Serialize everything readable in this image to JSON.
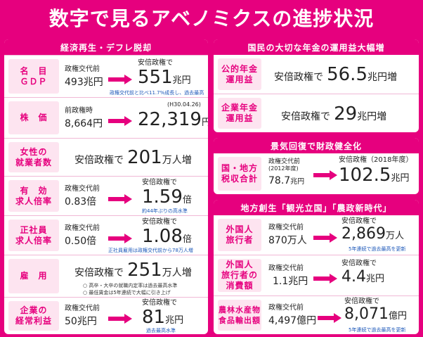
{
  "title": "数字で見るアベノミクスの進捗状況",
  "econ": {
    "header": "経済再生・デフレ脱却",
    "rows": [
      {
        "label": "名　目\nＧＤＰ",
        "before_label": "政権交代前",
        "before_value": "493兆円",
        "after_label": "安倍政権で",
        "after_value": "551",
        "after_unit": "兆円",
        "note": "政権交代前と比べ11.7%成長し、過去最高"
      },
      {
        "label": "株　価",
        "before_label": "前政権時",
        "before_value": "8,664円",
        "after_date": "(H30.04.26)",
        "after_value": "22,319",
        "after_unit": "円"
      },
      {
        "label": "女性の\n就業者数",
        "after_label": "安倍政権で",
        "after_value": "201",
        "after_unit": "万人増"
      },
      {
        "label": "有　効\n求人倍率",
        "before_label": "政権交代前",
        "before_value": "0.83倍",
        "after_label": "安倍政権で",
        "after_value": "1.59",
        "after_unit": "倍",
        "note": "約44年ぶりの高水準"
      },
      {
        "label": "正社員\n求人倍率",
        "before_label": "政権交代前",
        "before_value": "0.50倍",
        "after_label": "安倍政権で",
        "after_value": "1.08",
        "after_unit": "倍",
        "note": "正社員雇用は政権交代前から78万人増"
      },
      {
        "label": "雇　用",
        "after_label": "安倍政権で",
        "after_value": "251",
        "after_unit": "万人増",
        "note_a": "○ 高卒・大卒の就職内定率は過去最高水準",
        "note_b": "○ 最低賃金は5年連続で大幅に引き上げ"
      },
      {
        "label": "企業の\n経常利益",
        "before_label": "政権交代前",
        "before_value": "50兆円",
        "after_label": "安倍政権で",
        "after_value": "81",
        "after_unit": "兆円",
        "note": "過去最高水準"
      }
    ]
  },
  "pension": {
    "header": "国民の大切な年金の運用益大幅増",
    "rows": [
      {
        "label": "公的年金\n運用益",
        "prefix": "安倍政権で",
        "value": "56.5",
        "unit": "兆円増"
      },
      {
        "label": "企業年金\n運用益",
        "prefix": "安倍政権で",
        "value": "29",
        "unit": "兆円増"
      }
    ]
  },
  "fiscal": {
    "header": "景気回復で財政健全化",
    "row": {
      "label": "国・地方\n税収合計",
      "before_label": "政権交代前",
      "before_year": "(2012年度)",
      "before_value": "78.7",
      "before_unit": "兆円",
      "after_label": "安倍政権（2018年度）",
      "after_value": "102.5",
      "after_unit": "兆円"
    }
  },
  "regional": {
    "header": "地方創生「観光立国」「農政新時代」",
    "rows": [
      {
        "label": "外国人\n旅行者",
        "before_label": "政権交代前",
        "before_value": "870万人",
        "after_label": "安倍政権で",
        "after_value": "2,869",
        "after_unit": "万人",
        "note": "5年連続で過去最高を更新"
      },
      {
        "label": "外国人\n旅行者の\n消費額",
        "before_label": "政権交代前",
        "before_value": "1.1兆円",
        "after_label": "安倍政権で",
        "after_value": "4.4",
        "after_unit": "兆円"
      },
      {
        "label": "農林水産物\n食品輸出額",
        "before_label": "政権交代前",
        "before_value": "4,497億円",
        "after_label": "安倍政権で",
        "after_value": "8,071",
        "after_unit": "億円",
        "note": "5年連続で過去最高を更新"
      }
    ]
  }
}
